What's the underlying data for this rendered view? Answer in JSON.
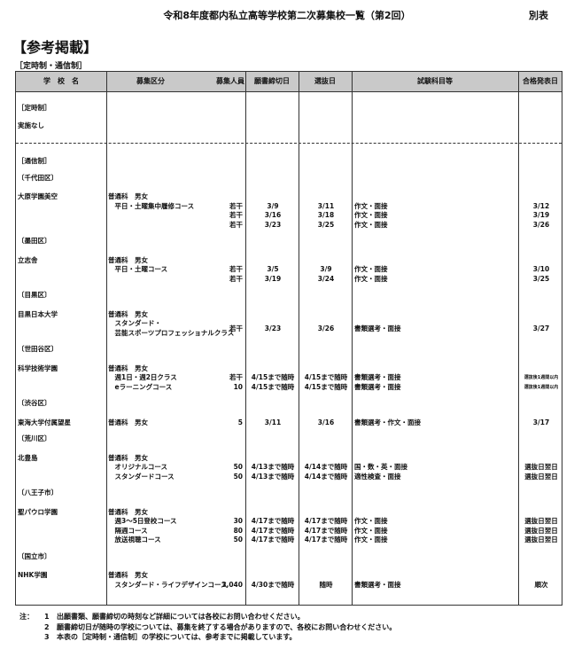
{
  "document": {
    "title": "令和8年度都内私立高等学校第二次募集校一覧（第2回）",
    "annex": "別表",
    "heading": "【参考掲載】",
    "subheading": "［定時制・通信制］"
  },
  "table": {
    "headers": {
      "school": "学　校　名",
      "dept": "募集区分",
      "count": "募集人員",
      "deadline": "願書締切日",
      "exam": "選抜日",
      "subjects": "試験科目等",
      "result": "合格発表日"
    },
    "rows": [
      {
        "kind": "section",
        "school": "［定時制］"
      },
      {
        "kind": "plain",
        "school": "実施なし"
      },
      {
        "kind": "divider"
      },
      {
        "kind": "section",
        "school": "［通信制］"
      },
      {
        "kind": "region",
        "school": "〔千代田区〕"
      },
      {
        "kind": "school",
        "school": "大原学園美空",
        "dept": "普通科　男女"
      },
      {
        "kind": "line",
        "dept": "　平日・土曜集中履修コース",
        "count": "若干",
        "deadline": "3/9",
        "exam": "3/11",
        "subjects": "作文・面接",
        "result": "3/12"
      },
      {
        "kind": "line",
        "count": "若干",
        "deadline": "3/16",
        "exam": "3/18",
        "subjects": "作文・面接",
        "result": "3/19"
      },
      {
        "kind": "line",
        "count": "若干",
        "deadline": "3/23",
        "exam": "3/25",
        "subjects": "作文・面接",
        "result": "3/26"
      },
      {
        "kind": "region",
        "school": "〔墨田区〕"
      },
      {
        "kind": "school",
        "school": "立志舎",
        "dept": "普通科　男女"
      },
      {
        "kind": "line",
        "dept": "　平日・土曜コース",
        "count": "若干",
        "deadline": "3/5",
        "exam": "3/9",
        "subjects": "作文・面接",
        "result": "3/10"
      },
      {
        "kind": "line",
        "count": "若干",
        "deadline": "3/19",
        "exam": "3/24",
        "subjects": "作文・面接",
        "result": "3/25"
      },
      {
        "kind": "region",
        "school": "〔目黒区〕"
      },
      {
        "kind": "school",
        "school": "目黒日本大学",
        "dept": "普通科　男女"
      },
      {
        "kind": "tall",
        "dept": "　スタンダード・",
        "dept2": "　芸能スポーツプロフェッショナルクラス",
        "count": "若干",
        "deadline": "3/23",
        "exam": "3/26",
        "subjects": "書類選考・面接",
        "result": "3/27"
      },
      {
        "kind": "region",
        "school": "〔世田谷区〕"
      },
      {
        "kind": "school",
        "school": "科学技術学園",
        "dept": "普通科　男女"
      },
      {
        "kind": "line",
        "dept": "　週1日・週2日クラス",
        "count": "若干",
        "deadline": "4/15まで随時",
        "exam": "4/15まで随時",
        "subjects": "書類選考・面接",
        "result": "選抜後1週間以内",
        "small": true
      },
      {
        "kind": "line",
        "dept": "　eラーニングコース",
        "count": "10",
        "deadline": "4/15まで随時",
        "exam": "4/15まで随時",
        "subjects": "書類選考・面接",
        "result": "選抜後1週間以内",
        "small": true
      },
      {
        "kind": "region",
        "school": "〔渋谷区〕"
      },
      {
        "kind": "school",
        "school": "東海大学付属望星",
        "dept": "普通科　男女",
        "count": "5",
        "deadline": "3/11",
        "exam": "3/16",
        "subjects": "書類選考・作文・面接",
        "result": "3/17"
      },
      {
        "kind": "region",
        "school": "〔荒川区〕"
      },
      {
        "kind": "school",
        "school": "北豊島",
        "dept": "普通科　男女"
      },
      {
        "kind": "line",
        "dept": "　オリジナルコース",
        "count": "50",
        "deadline": "4/13まで随時",
        "exam": "4/14まで随時",
        "subjects": "国・数・英・面接",
        "result": "選抜日翌日"
      },
      {
        "kind": "line",
        "dept": "　スタンダードコース",
        "count": "50",
        "deadline": "4/13まで随時",
        "exam": "4/14まで随時",
        "subjects": "適性検査・面接",
        "result": "選抜日翌日"
      },
      {
        "kind": "region",
        "school": "〔八王子市〕"
      },
      {
        "kind": "school",
        "school": "聖パウロ学園",
        "dept": "普通科　男女"
      },
      {
        "kind": "line",
        "dept": "　週3～5日登校コース",
        "count": "30",
        "deadline": "4/17まで随時",
        "exam": "4/17まで随時",
        "subjects": "作文・面接",
        "result": "選抜日翌日"
      },
      {
        "kind": "line",
        "dept": "　隔週コース",
        "count": "80",
        "deadline": "4/17まで随時",
        "exam": "4/17まで随時",
        "subjects": "作文・面接",
        "result": "選抜日翌日"
      },
      {
        "kind": "line",
        "dept": "　放送視聴コース",
        "count": "50",
        "deadline": "4/17まで随時",
        "exam": "4/17まで随時",
        "subjects": "作文・面接",
        "result": "選抜日翌日"
      },
      {
        "kind": "region",
        "school": "〔国立市〕"
      },
      {
        "kind": "school",
        "school": "NHK学園",
        "dept": "普通科　男女"
      },
      {
        "kind": "line",
        "dept": "　スタンダード・ライフデザインコース",
        "count": "3,040",
        "deadline": "4/30まで随時",
        "exam": "随時",
        "subjects": "書類選考・面接",
        "result": "順次"
      }
    ]
  },
  "notes": {
    "label": "注：",
    "items": [
      {
        "num": "1",
        "text": "出願書類、願書締切の時刻など詳細については各校にお問い合わせください。"
      },
      {
        "num": "2",
        "text": "願書締切日が随時の学校については、募集を終了する場合がありますので、各校にお問い合わせください。"
      },
      {
        "num": "3",
        "text": "本表の［定時制・通信制］の学校については、参考までに掲載しています。"
      }
    ]
  }
}
